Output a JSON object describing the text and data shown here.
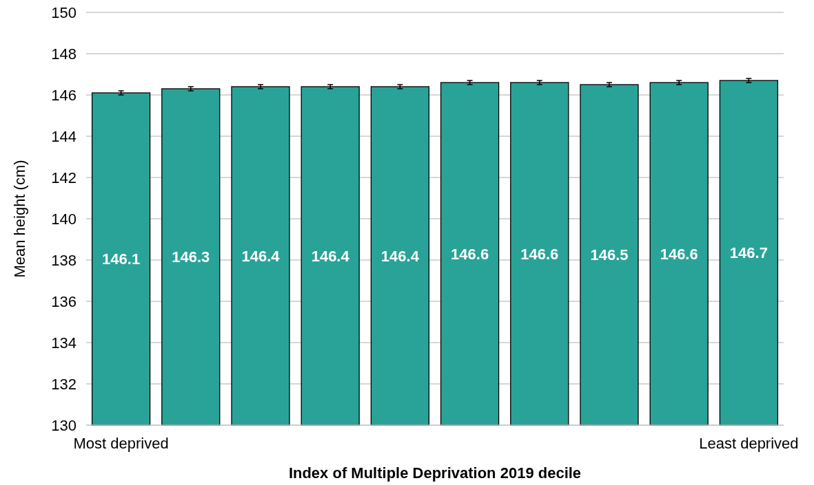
{
  "chart_data": {
    "type": "bar",
    "xlabel": "Index of Multiple Deprivation 2019 decile",
    "ylabel": "Mean height (cm)",
    "categories": [
      "Most deprived",
      null,
      null,
      null,
      null,
      null,
      null,
      null,
      null,
      "Least deprived"
    ],
    "values": [
      146.1,
      146.3,
      146.4,
      146.4,
      146.4,
      146.6,
      146.6,
      146.5,
      146.6,
      146.7
    ],
    "errors": [
      0.1,
      0.1,
      0.1,
      0.1,
      0.1,
      0.1,
      0.1,
      0.1,
      0.1,
      0.1
    ],
    "color": "#29a398",
    "ylim": [
      130,
      150
    ],
    "yticks": [
      130,
      132,
      134,
      136,
      138,
      140,
      142,
      144,
      146,
      148,
      150
    ],
    "grid": "y",
    "data_labels": true
  }
}
